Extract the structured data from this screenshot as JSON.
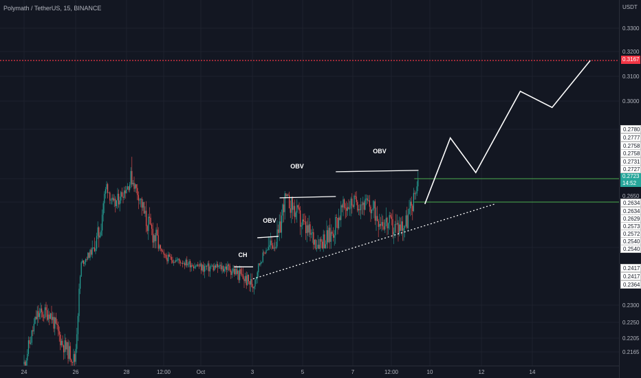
{
  "header": {
    "symbol_title": "Polymath / TetherUS, 15, BINANCE"
  },
  "price_axis": {
    "currency": "USDT",
    "ticks": [
      "0.3300",
      "0.3200",
      "0.3100",
      "0.3000",
      "0.2650",
      "0.2300",
      "0.2250",
      "0.2205",
      "0.2165"
    ],
    "target_price": "0.3167",
    "last_price": "0.2723",
    "countdown": "14:52",
    "price_labels": [
      "0.2780",
      "0.2777",
      "0.2758",
      "0.2758",
      "0.2731",
      "0.2727",
      "0.2634",
      "0.2634",
      "0.2629",
      "0.2573",
      "0.2572",
      "0.2540",
      "0.2540",
      "0.2417",
      "0.2417",
      "0.2364"
    ]
  },
  "time_axis": {
    "labels": [
      "24",
      "26",
      "28",
      "12:00",
      "Oct",
      "3",
      "5",
      "7",
      "12:00",
      "10",
      "12",
      "14"
    ]
  },
  "annotations": {
    "ch": "CH",
    "obv1": "OBV",
    "obv2": "OBV",
    "obv3": "OBV"
  },
  "colors": {
    "background": "#131722",
    "up": "#26a69a",
    "down": "#ef5350",
    "target_line": "#f23645",
    "projection": "#ffffff",
    "level_line": "#4caf50"
  },
  "chart_data": {
    "type": "candlestick",
    "symbol": "Polymath / TetherUS",
    "interval": "15",
    "exchange": "BINANCE",
    "y_unit": "USDT",
    "horizontal_line": 0.3167,
    "last_price": 0.2723,
    "price_path": [
      {
        "t": "Sep 24 00:00",
        "p": 0.213
      },
      {
        "t": "Sep 24 12:00",
        "p": 0.227
      },
      {
        "t": "Sep 25 00:00",
        "p": 0.228
      },
      {
        "t": "Sep 25 12:00",
        "p": 0.219
      },
      {
        "t": "Sep 26 00:00",
        "p": 0.214
      },
      {
        "t": "Sep 26 06:00",
        "p": 0.244
      },
      {
        "t": "Sep 27 00:00",
        "p": 0.258
      },
      {
        "t": "Sep 27 06:00",
        "p": 0.27
      },
      {
        "t": "Sep 27 12:00",
        "p": 0.262
      },
      {
        "t": "Sep 28 06:00",
        "p": 0.272
      },
      {
        "t": "Sep 28 18:00",
        "p": 0.26
      },
      {
        "t": "Sep 29 06:00",
        "p": 0.255
      },
      {
        "t": "Sep 29 12:00",
        "p": 0.248
      },
      {
        "t": "Sep 30 00:00",
        "p": 0.246
      },
      {
        "t": "Sep 30 12:00",
        "p": 0.244
      },
      {
        "t": "Oct 1 00:00",
        "p": 0.242
      },
      {
        "t": "Oct 1 12:00",
        "p": 0.242
      },
      {
        "t": "Oct 2 00:00",
        "p": 0.242
      },
      {
        "t": "Oct 2 12:00",
        "p": 0.239
      },
      {
        "t": "Oct 3 00:00",
        "p": 0.236
      },
      {
        "t": "Oct 3 06:00",
        "p": 0.244
      },
      {
        "t": "Oct 3 12:00",
        "p": 0.253
      },
      {
        "t": "Oct 4 00:00",
        "p": 0.256
      },
      {
        "t": "Oct 4 06:00",
        "p": 0.265
      },
      {
        "t": "Oct 4 12:00",
        "p": 0.263
      },
      {
        "t": "Oct 5 00:00",
        "p": 0.258
      },
      {
        "t": "Oct 5 12:00",
        "p": 0.255
      },
      {
        "t": "Oct 6 00:00",
        "p": 0.256
      },
      {
        "t": "Oct 6 12:00",
        "p": 0.262
      },
      {
        "t": "Oct 7 00:00",
        "p": 0.264
      },
      {
        "t": "Oct 7 12:00",
        "p": 0.263
      },
      {
        "t": "Oct 8 00:00",
        "p": 0.26
      },
      {
        "t": "Oct 8 12:00",
        "p": 0.258
      },
      {
        "t": "Oct 9 00:00",
        "p": 0.259
      },
      {
        "t": "Oct 9 06:00",
        "p": 0.263
      },
      {
        "t": "Oct 9 12:00",
        "p": 0.2723
      }
    ],
    "projection_path": [
      {
        "t": "Oct 9 18:00",
        "p": 0.263
      },
      {
        "t": "Oct 10 18:00",
        "p": 0.277
      },
      {
        "t": "Oct 11 18:00",
        "p": 0.273
      },
      {
        "t": "Oct 13 12:00",
        "p": 0.304
      },
      {
        "t": "Oct 14 18:00",
        "p": 0.295
      },
      {
        "t": "Oct 16 06:00",
        "p": 0.3167
      }
    ],
    "trendline": [
      {
        "t": "Oct 3 00:00",
        "p": 0.238
      },
      {
        "t": "Oct 12 12:00",
        "p": 0.263
      }
    ],
    "structure_levels": [
      {
        "label": "CH",
        "p": 0.242
      },
      {
        "label": "OBV",
        "p": 0.256
      },
      {
        "label": "OBV",
        "p": 0.265
      },
      {
        "label": "OBV",
        "p": 0.2731
      }
    ],
    "support_levels": [
      0.2723,
      0.2634
    ]
  }
}
